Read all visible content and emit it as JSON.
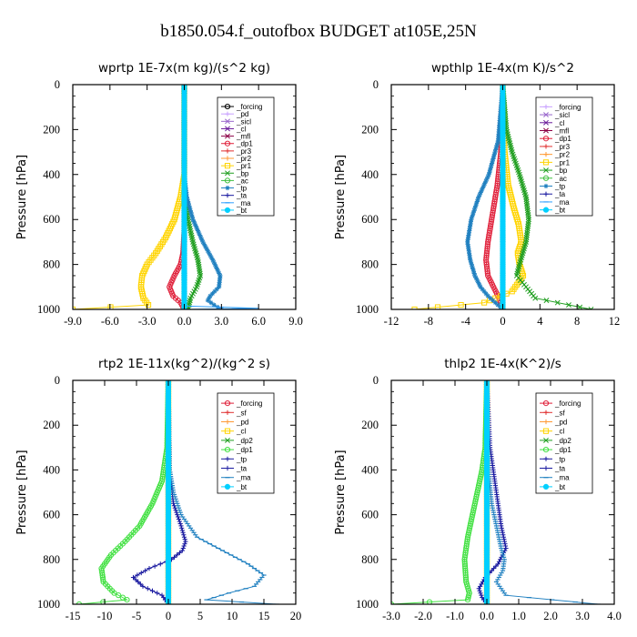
{
  "figure": {
    "title": "b1850.054.f_outofbox  BUDGET at105E,25N",
    "ylabel": "Pressure [hPa]"
  },
  "chart_data": [
    {
      "type": "line",
      "title": "wprtp   1E-7x(m kg)/(s^2 kg)",
      "xlim": [
        -9,
        9
      ],
      "xticks": [
        -9,
        -6,
        -3,
        0,
        3,
        6,
        9
      ],
      "xtick_labels": [
        "-9.0",
        "-6.0",
        "-3.0",
        "0.0",
        "3.0",
        "6.0",
        "9.0"
      ],
      "ylim": [
        1000,
        0
      ],
      "yticks": [
        0,
        200,
        400,
        600,
        800,
        1000
      ],
      "ylabel": "Pressure [hPa]",
      "legend_position": "top-right",
      "series": [
        {
          "name": "_forcing",
          "color": "#000000",
          "marker": "circle-open",
          "x": [
            0,
            0
          ],
          "y": [
            0,
            1000
          ]
        },
        {
          "name": "_pd",
          "color": "#c8a0ff",
          "marker": "plus",
          "x": [
            0,
            0
          ],
          "y": [
            0,
            1000
          ]
        },
        {
          "name": "_sicl",
          "color": "#9966cc",
          "marker": "cross",
          "x": [
            0,
            0
          ],
          "y": [
            0,
            1000
          ]
        },
        {
          "name": "_cl",
          "color": "#6a1b9a",
          "marker": "x",
          "x": [
            0,
            0
          ],
          "y": [
            0,
            1000
          ]
        },
        {
          "name": "_mfl",
          "color": "#8b0045",
          "marker": "x",
          "x": [
            0,
            0
          ],
          "y": [
            0,
            1000
          ]
        },
        {
          "name": "_dp1",
          "color": "#e0203a",
          "marker": "circle-open",
          "x": [
            0,
            0,
            0,
            -0.1,
            -0.3,
            -0.8,
            -1.2,
            -0.9,
            -0.3,
            0
          ],
          "y": [
            0,
            500,
            650,
            750,
            800,
            850,
            900,
            940,
            970,
            1000
          ]
        },
        {
          "name": "_pr3",
          "color": "#e03030",
          "marker": "plus",
          "x": [
            0,
            0
          ],
          "y": [
            0,
            1000
          ]
        },
        {
          "name": "_pr2",
          "color": "#ff9933",
          "marker": "plus",
          "x": [
            0,
            0
          ],
          "y": [
            0,
            1000
          ]
        },
        {
          "name": "_pr1",
          "color": "#ffd400",
          "marker": "square-open",
          "x": [
            0,
            0,
            -0.3,
            -0.8,
            -1.5,
            -2.3,
            -3.0,
            -3.4,
            -3.5,
            -3.3,
            -2.9,
            -9.0
          ],
          "y": [
            0,
            400,
            500,
            600,
            680,
            750,
            800,
            850,
            900,
            950,
            980,
            1000
          ]
        },
        {
          "name": "_bp",
          "color": "#1f9e1f",
          "marker": "x",
          "x": [
            0,
            0,
            0.1,
            0.3,
            0.7,
            1.1,
            1.3,
            1.0,
            0.5,
            0.3
          ],
          "y": [
            0,
            400,
            500,
            600,
            700,
            780,
            850,
            900,
            950,
            1000
          ]
        },
        {
          "name": "_ac",
          "color": "#40c040",
          "marker": "circle-open",
          "x": [
            0,
            0
          ],
          "y": [
            0,
            1000
          ]
        },
        {
          "name": "_tp",
          "color": "#2080c0",
          "marker": "star",
          "x": [
            0,
            0,
            0.2,
            0.7,
            1.5,
            2.3,
            2.9,
            2.8,
            2.1,
            1.9,
            2.4,
            3.0
          ],
          "y": [
            0,
            400,
            500,
            600,
            700,
            780,
            850,
            900,
            940,
            960,
            980,
            1000
          ]
        },
        {
          "name": "_ta",
          "color": "#1a1aa0",
          "marker": "plus",
          "x": [
            0,
            0
          ],
          "y": [
            0,
            1000
          ]
        },
        {
          "name": "_ma",
          "color": "#30a0ff",
          "marker": "dash",
          "x": [
            0,
            0,
            6.0,
            0
          ],
          "y": [
            0,
            985,
            995,
            1000
          ]
        },
        {
          "name": "_bt",
          "color": "#00d0ff",
          "marker": "star-filled",
          "x": [
            0,
            0
          ],
          "y": [
            0,
            1000
          ]
        }
      ]
    },
    {
      "type": "line",
      "title": "wpthlp   1E-4x(m K)/s^2",
      "xlim": [
        -12,
        12
      ],
      "xticks": [
        -12,
        -8,
        -4,
        0,
        4,
        8,
        12
      ],
      "xtick_labels": [
        "-12",
        "-8",
        "-4",
        "0",
        "4",
        "8",
        "12"
      ],
      "ylim": [
        1000,
        0
      ],
      "yticks": [
        0,
        200,
        400,
        600,
        800,
        1000
      ],
      "ylabel": "Pressure [hPa]",
      "legend_position": "top-right",
      "series": [
        {
          "name": "_forcing",
          "color": "#c8a0ff",
          "marker": "plus",
          "x": [
            0,
            0
          ],
          "y": [
            0,
            1000
          ]
        },
        {
          "name": "_sicl",
          "color": "#9966cc",
          "marker": "cross",
          "x": [
            0,
            0
          ],
          "y": [
            0,
            1000
          ]
        },
        {
          "name": "_cl",
          "color": "#6a1b9a",
          "marker": "x",
          "x": [
            0,
            0
          ],
          "y": [
            0,
            1000
          ]
        },
        {
          "name": "_mfl",
          "color": "#8b0045",
          "marker": "x",
          "x": [
            0,
            0
          ],
          "y": [
            0,
            1000
          ]
        },
        {
          "name": "_dp1",
          "color": "#e0203a",
          "marker": "circle-open",
          "x": [
            0,
            -0.2,
            -0.6,
            -1.2,
            -1.6,
            -1.8,
            -1.6,
            -1.0,
            -0.4,
            0
          ],
          "y": [
            0,
            300,
            450,
            600,
            700,
            780,
            850,
            900,
            950,
            1000
          ]
        },
        {
          "name": "_pr3",
          "color": "#e03030",
          "marker": "plus",
          "x": [
            0,
            0
          ],
          "y": [
            0,
            1000
          ]
        },
        {
          "name": "_pr2",
          "color": "#ff9933",
          "marker": "plus",
          "x": [
            0,
            0
          ],
          "y": [
            0,
            1000
          ]
        },
        {
          "name": "_pr1",
          "color": "#ffd400",
          "marker": "square-open",
          "x": [
            0,
            0.2,
            0.6,
            1.2,
            1.7,
            2.0,
            1.6,
            1.8,
            2.2,
            1.0,
            -2.0,
            -9.5
          ],
          "y": [
            0,
            300,
            450,
            550,
            620,
            700,
            750,
            800,
            850,
            920,
            970,
            1000
          ]
        },
        {
          "name": "_bp",
          "color": "#1f9e1f",
          "marker": "x",
          "x": [
            0,
            0.4,
            1.0,
            1.8,
            2.5,
            2.8,
            2.5,
            1.8,
            1.5,
            3.5,
            9.5
          ],
          "y": [
            0,
            200,
            300,
            400,
            500,
            600,
            700,
            800,
            850,
            950,
            1000
          ]
        },
        {
          "name": "_ac",
          "color": "#40c040",
          "marker": "circle-open",
          "x": [
            0,
            0
          ],
          "y": [
            0,
            1000
          ]
        },
        {
          "name": "_tp",
          "color": "#2080c0",
          "marker": "star",
          "x": [
            0,
            -0.5,
            -1.5,
            -2.6,
            -3.4,
            -3.8,
            -3.5,
            -3.0,
            -2.4,
            -1.6,
            -0.8,
            0
          ],
          "y": [
            0,
            250,
            400,
            500,
            600,
            700,
            780,
            850,
            900,
            940,
            970,
            1000
          ]
        },
        {
          "name": "_ta",
          "color": "#1a1aa0",
          "marker": "plus",
          "x": [
            0,
            0
          ],
          "y": [
            0,
            1000
          ]
        },
        {
          "name": "_ma",
          "color": "#30a0ff",
          "marker": "dash",
          "x": [
            0,
            0
          ],
          "y": [
            0,
            1000
          ]
        },
        {
          "name": "_bt",
          "color": "#00d0ff",
          "marker": "star-filled",
          "x": [
            0,
            0
          ],
          "y": [
            0,
            1000
          ]
        }
      ]
    },
    {
      "type": "line",
      "title": "rtp2   1E-11x(kg^2)/(kg^2 s)",
      "xlim": [
        -15,
        20
      ],
      "xticks": [
        -15,
        -10,
        -5,
        0,
        5,
        10,
        15,
        20
      ],
      "xtick_labels": [
        "-15",
        "-10",
        "-5",
        "0",
        "5",
        "10",
        "15",
        "20"
      ],
      "ylim": [
        1000,
        0
      ],
      "yticks": [
        0,
        200,
        400,
        600,
        800,
        1000
      ],
      "ylabel": "Pressure [hPa]",
      "legend_position": "top-right",
      "series": [
        {
          "name": "_forcing",
          "color": "#e0203a",
          "marker": "circle-open",
          "x": [
            0,
            0
          ],
          "y": [
            0,
            1000
          ]
        },
        {
          "name": "_sf",
          "color": "#e03030",
          "marker": "plus",
          "x": [
            0,
            0
          ],
          "y": [
            0,
            1000
          ]
        },
        {
          "name": "_pd",
          "color": "#ff9933",
          "marker": "plus",
          "x": [
            0,
            0
          ],
          "y": [
            0,
            1000
          ]
        },
        {
          "name": "_cl",
          "color": "#ffd400",
          "marker": "square-open",
          "x": [
            0,
            0
          ],
          "y": [
            0,
            1000
          ]
        },
        {
          "name": "_dp2",
          "color": "#1f9e1f",
          "marker": "x",
          "x": [
            0,
            0
          ],
          "y": [
            0,
            1000
          ]
        },
        {
          "name": "_dp1",
          "color": "#40e040",
          "marker": "circle-open",
          "x": [
            0,
            -0.2,
            -1.0,
            -2.5,
            -4.5,
            -6.8,
            -9.0,
            -10.5,
            -10.2,
            -8.5,
            -6.5,
            -14.0
          ],
          "y": [
            0,
            300,
            450,
            550,
            650,
            720,
            780,
            840,
            900,
            950,
            980,
            1000
          ]
        },
        {
          "name": "_tp",
          "color": "#1a1aa0",
          "marker": "plus",
          "x": [
            0,
            0.2,
            0.8,
            2.0,
            2.7,
            2.2,
            0.5,
            -3.0,
            -5.5,
            -4.0,
            -1.0,
            0
          ],
          "y": [
            0,
            400,
            550,
            650,
            720,
            760,
            800,
            840,
            880,
            920,
            960,
            1000
          ]
        },
        {
          "name": "_ta",
          "color": "#1a1aa0",
          "marker": "plus",
          "x": [
            0,
            0
          ],
          "y": [
            0,
            1000
          ]
        },
        {
          "name": "_ma",
          "color": "#2080c0",
          "marker": "dash",
          "x": [
            0,
            0.2,
            0.8,
            2.0,
            4.5,
            8.5,
            12.5,
            15.0,
            13.5,
            9.5,
            6.0,
            17.0
          ],
          "y": [
            0,
            400,
            500,
            600,
            700,
            760,
            820,
            870,
            920,
            950,
            980,
            1000
          ]
        },
        {
          "name": "_bt",
          "color": "#00d0ff",
          "marker": "star-filled",
          "x": [
            0,
            0
          ],
          "y": [
            0,
            1000
          ]
        }
      ]
    },
    {
      "type": "line",
      "title": "thlp2   1E-4x(K^2)/s",
      "xlim": [
        -3,
        4
      ],
      "xticks": [
        -3,
        -2,
        -1,
        0,
        1,
        2,
        3,
        4
      ],
      "xtick_labels": [
        "-3.0",
        "-2.0",
        "-1.0",
        "0.0",
        "1.0",
        "2.0",
        "3.0",
        "4.0"
      ],
      "ylim": [
        1000,
        0
      ],
      "yticks": [
        0,
        200,
        400,
        600,
        800,
        1000
      ],
      "ylabel": "Pressure [hPa]",
      "legend_position": "top-right",
      "series": [
        {
          "name": "_forcing",
          "color": "#e0203a",
          "marker": "circle-open",
          "x": [
            0,
            0
          ],
          "y": [
            0,
            1000
          ]
        },
        {
          "name": "_sf",
          "color": "#e03030",
          "marker": "plus",
          "x": [
            0,
            0
          ],
          "y": [
            0,
            1000
          ]
        },
        {
          "name": "_pd",
          "color": "#ff9933",
          "marker": "plus",
          "x": [
            0,
            0
          ],
          "y": [
            0,
            1000
          ]
        },
        {
          "name": "_cl",
          "color": "#ffd400",
          "marker": "square-open",
          "x": [
            0,
            0
          ],
          "y": [
            0,
            1000
          ]
        },
        {
          "name": "_dp2",
          "color": "#1f9e1f",
          "marker": "x",
          "x": [
            0,
            0
          ],
          "y": [
            0,
            1000
          ]
        },
        {
          "name": "_dp1",
          "color": "#40e040",
          "marker": "circle-open",
          "x": [
            0,
            -0.05,
            -0.15,
            -0.3,
            -0.45,
            -0.6,
            -0.7,
            -0.65,
            -0.55,
            -0.6,
            -3.0
          ],
          "y": [
            0,
            300,
            400,
            500,
            600,
            700,
            800,
            900,
            950,
            980,
            1000
          ]
        },
        {
          "name": "_tp",
          "color": "#1a1aa0",
          "marker": "plus",
          "x": [
            0,
            0.1,
            0.25,
            0.35,
            0.45,
            0.6,
            0.35,
            -0.05,
            -0.25,
            -0.15,
            0
          ],
          "y": [
            0,
            300,
            450,
            550,
            650,
            750,
            820,
            880,
            930,
            970,
            1000
          ]
        },
        {
          "name": "_ta",
          "color": "#1a1aa0",
          "marker": "plus",
          "x": [
            0,
            0
          ],
          "y": [
            0,
            1000
          ]
        },
        {
          "name": "_ma",
          "color": "#2080c0",
          "marker": "dash",
          "x": [
            0,
            0.05,
            0.15,
            0.3,
            0.45,
            0.55,
            0.5,
            0.3,
            0.6,
            3.5
          ],
          "y": [
            0,
            400,
            550,
            650,
            750,
            800,
            850,
            900,
            960,
            1000
          ]
        },
        {
          "name": "_bt",
          "color": "#00d0ff",
          "marker": "star-filled",
          "x": [
            0,
            0
          ],
          "y": [
            0,
            1000
          ]
        }
      ]
    }
  ]
}
